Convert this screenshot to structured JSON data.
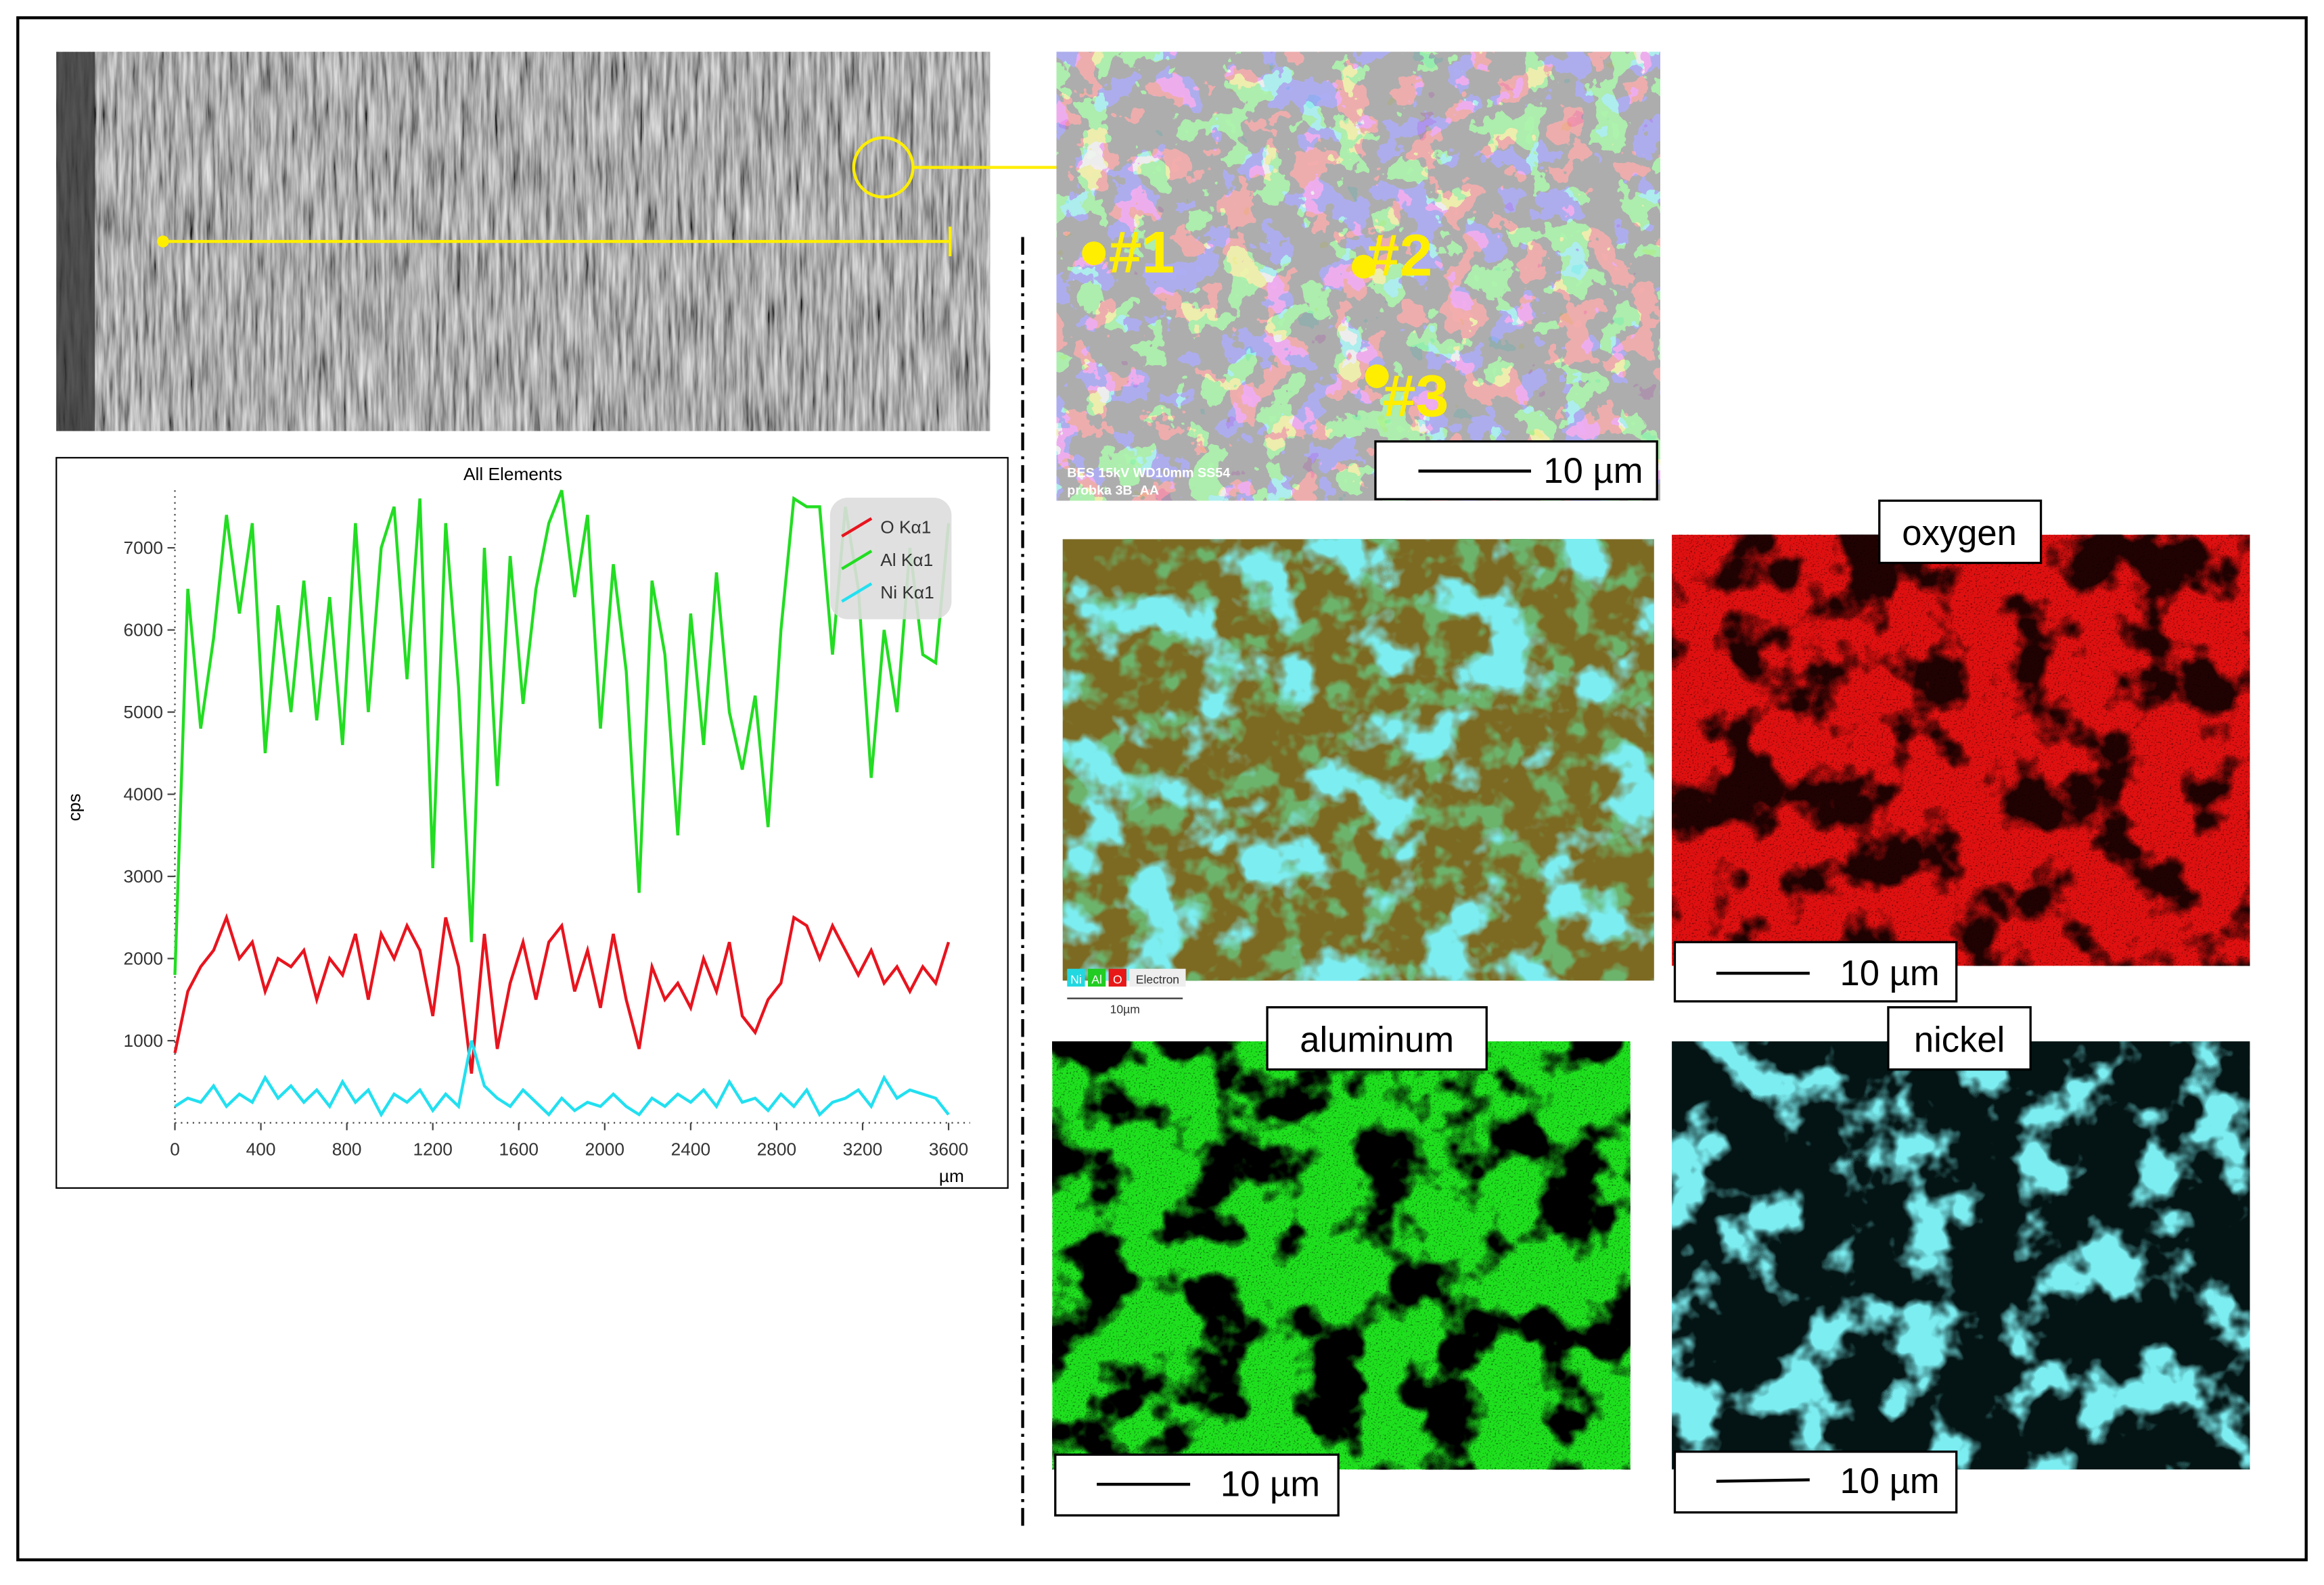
{
  "chart_data": {
    "type": "line",
    "title": "All Elements",
    "y_label": "cps",
    "x_label": "µm",
    "x": [
      0,
      60,
      120,
      180,
      240,
      300,
      360,
      420,
      480,
      540,
      600,
      660,
      720,
      780,
      840,
      900,
      960,
      1020,
      1080,
      1140,
      1200,
      1260,
      1320,
      1380,
      1440,
      1500,
      1560,
      1620,
      1680,
      1740,
      1800,
      1860,
      1920,
      1980,
      2040,
      2100,
      2160,
      2220,
      2280,
      2340,
      2400,
      2460,
      2520,
      2580,
      2640,
      2700,
      2760,
      2820,
      2880,
      2940,
      3000,
      3060,
      3120,
      3180,
      3240,
      3300,
      3360,
      3420,
      3480,
      3540,
      3600
    ],
    "series": [
      {
        "name": "O Kα1",
        "color": "#e8141e",
        "values": [
          850,
          1600,
          1900,
          2100,
          2500,
          2000,
          2200,
          1600,
          2000,
          1900,
          2100,
          1500,
          2000,
          1800,
          2300,
          1500,
          2300,
          2000,
          2400,
          2100,
          1300,
          2500,
          1900,
          600,
          2300,
          900,
          1700,
          2200,
          1500,
          2200,
          2400,
          1600,
          2100,
          1400,
          2300,
          1500,
          900,
          1900,
          1500,
          1700,
          1400,
          2000,
          1600,
          2200,
          1300,
          1100,
          1500,
          1700,
          2500,
          2400,
          2000,
          2400,
          2100,
          1800,
          2100,
          1700,
          1900,
          1600,
          1900,
          1700,
          2200
        ]
      },
      {
        "name": "Al Kα1",
        "color": "#22dd22",
        "values": [
          1800,
          6500,
          4800,
          5900,
          7400,
          6200,
          7300,
          4500,
          6300,
          5000,
          6600,
          4900,
          6400,
          4600,
          7300,
          5000,
          7000,
          7500,
          5400,
          7600,
          3100,
          7300,
          5300,
          2200,
          7000,
          4100,
          6900,
          5100,
          6500,
          7300,
          7700,
          6400,
          7400,
          4800,
          6800,
          5500,
          2800,
          6600,
          5700,
          3500,
          6200,
          4600,
          6700,
          5000,
          4300,
          5200,
          3600,
          6000,
          7600,
          7500,
          7500,
          5700,
          7500,
          6500,
          4200,
          6000,
          5000,
          7000,
          5700,
          5600,
          7300
        ]
      },
      {
        "name": "Ni Kα1",
        "color": "#22e0f0",
        "values": [
          200,
          300,
          250,
          450,
          200,
          350,
          250,
          550,
          300,
          450,
          250,
          400,
          200,
          500,
          250,
          400,
          100,
          350,
          250,
          400,
          150,
          350,
          200,
          1000,
          450,
          300,
          200,
          400,
          250,
          100,
          300,
          150,
          250,
          200,
          350,
          200,
          100,
          300,
          200,
          350,
          250,
          400,
          200,
          500,
          250,
          300,
          150,
          350,
          200,
          400,
          100,
          250,
          300,
          400,
          200,
          550,
          300,
          400,
          350,
          300,
          100
        ]
      }
    ],
    "xlim": [
      0,
      3700
    ],
    "ylim": [
      0,
      7700
    ],
    "xticks": [
      0,
      400,
      800,
      1200,
      1600,
      2000,
      2400,
      2800,
      3200,
      3600
    ],
    "yticks": [
      1000,
      2000,
      3000,
      4000,
      5000,
      6000,
      7000
    ],
    "legend": "upper right"
  },
  "figure": {
    "sem_info": "BES     15kV       WD10mm     SS54",
    "sem_sample": "probka 3B_AA",
    "points": [
      "#1",
      "#2",
      "#3"
    ],
    "sem_scale": "10 µm",
    "map_legend": [
      "Ni",
      "Al",
      "O",
      "Electron"
    ],
    "map_scale": "10µm",
    "oxygen_label": "oxygen",
    "oxygen_scale": "10 µm",
    "aluminum_label": "aluminum",
    "aluminum_scale": "10 µm",
    "nickel_label": "nickel",
    "nickel_scale": "10 µm"
  }
}
